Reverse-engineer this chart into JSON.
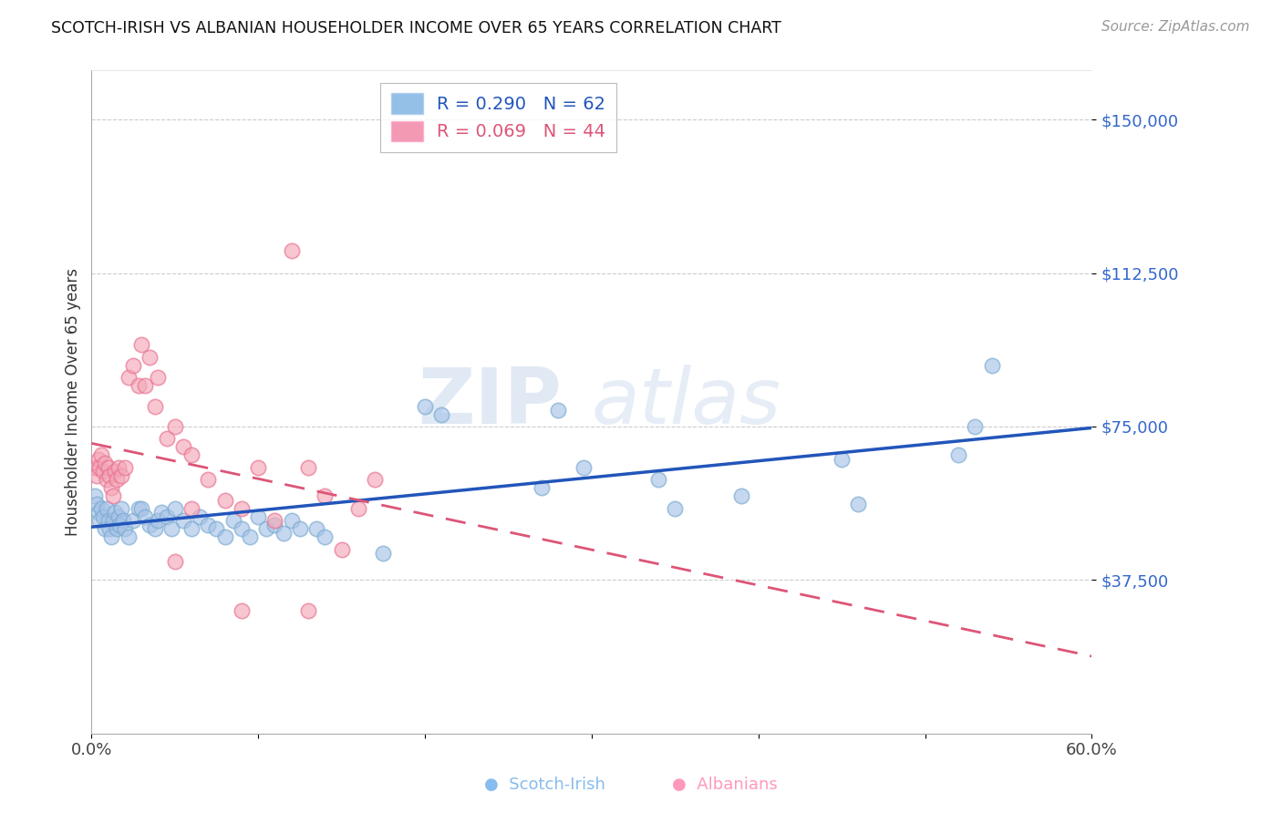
{
  "title": "SCOTCH-IRISH VS ALBANIAN HOUSEHOLDER INCOME OVER 65 YEARS CORRELATION CHART",
  "source": "Source: ZipAtlas.com",
  "ylabel": "Householder Income Over 65 years",
  "xlim": [
    0.0,
    0.6
  ],
  "ylim": [
    0,
    162000
  ],
  "xticks": [
    0.0,
    0.1,
    0.2,
    0.3,
    0.4,
    0.5,
    0.6
  ],
  "xticklabels": [
    "0.0%",
    "",
    "",
    "",
    "",
    "",
    "60.0%"
  ],
  "yticks": [
    37500,
    75000,
    112500,
    150000
  ],
  "yticklabels": [
    "$37,500",
    "$75,000",
    "$112,500",
    "$150,000"
  ],
  "scotch_irish_R": "0.290",
  "scotch_irish_N": "62",
  "albanians_R": "0.069",
  "albanians_N": "44",
  "scotch_color": "#a8c4e8",
  "albanian_color": "#f4a8b8",
  "scotch_edge_color": "#7aaad0",
  "albanian_edge_color": "#e87090",
  "scotch_line_color": "#2255bb",
  "albanian_line_color": "#dd5577",
  "watermark_zip": "ZIP",
  "watermark_atlas": "atlas",
  "watermark_color": "#c8d8ec",
  "legend_scotch_color": "#7ab0e0",
  "legend_albanian_color": "#f080a0",
  "bottom_scotch_color": "#88bbee",
  "bottom_albanian_color": "#ff99bb",
  "scotch_x": [
    0.002,
    0.003,
    0.004,
    0.005,
    0.006,
    0.007,
    0.008,
    0.009,
    0.01,
    0.011,
    0.012,
    0.013,
    0.014,
    0.015,
    0.016,
    0.017,
    0.018,
    0.019,
    0.02,
    0.022,
    0.025,
    0.028,
    0.03,
    0.032,
    0.035,
    0.038,
    0.04,
    0.042,
    0.045,
    0.048,
    0.05,
    0.055,
    0.06,
    0.065,
    0.07,
    0.075,
    0.08,
    0.085,
    0.09,
    0.095,
    0.1,
    0.105,
    0.11,
    0.115,
    0.12,
    0.125,
    0.135,
    0.14,
    0.175,
    0.2,
    0.21,
    0.27,
    0.28,
    0.295,
    0.34,
    0.35,
    0.39,
    0.45,
    0.46,
    0.52,
    0.53,
    0.54
  ],
  "scotch_y": [
    58000,
    56000,
    54000,
    52000,
    55000,
    53000,
    50000,
    55000,
    52000,
    50000,
    48000,
    52000,
    54000,
    50000,
    53000,
    51000,
    55000,
    52000,
    50000,
    48000,
    52000,
    55000,
    55000,
    53000,
    51000,
    50000,
    52000,
    54000,
    53000,
    50000,
    55000,
    52000,
    50000,
    53000,
    51000,
    50000,
    48000,
    52000,
    50000,
    48000,
    53000,
    50000,
    51000,
    49000,
    52000,
    50000,
    50000,
    48000,
    44000,
    80000,
    78000,
    60000,
    79000,
    65000,
    62000,
    55000,
    58000,
    67000,
    56000,
    68000,
    75000,
    90000
  ],
  "albanian_x": [
    0.002,
    0.003,
    0.004,
    0.005,
    0.006,
    0.007,
    0.008,
    0.009,
    0.01,
    0.011,
    0.012,
    0.013,
    0.014,
    0.015,
    0.016,
    0.018,
    0.02,
    0.022,
    0.025,
    0.028,
    0.03,
    0.032,
    0.035,
    0.038,
    0.04,
    0.045,
    0.05,
    0.055,
    0.06,
    0.07,
    0.08,
    0.09,
    0.1,
    0.11,
    0.12,
    0.13,
    0.14,
    0.15,
    0.16,
    0.17,
    0.05,
    0.06,
    0.09,
    0.13
  ],
  "albanian_y": [
    65000,
    63000,
    67000,
    65000,
    68000,
    64000,
    66000,
    62000,
    65000,
    63000,
    60000,
    58000,
    64000,
    62000,
    65000,
    63000,
    65000,
    87000,
    90000,
    85000,
    95000,
    85000,
    92000,
    80000,
    87000,
    72000,
    75000,
    70000,
    68000,
    62000,
    57000,
    55000,
    65000,
    52000,
    118000,
    65000,
    58000,
    45000,
    55000,
    62000,
    42000,
    55000,
    30000,
    30000
  ]
}
